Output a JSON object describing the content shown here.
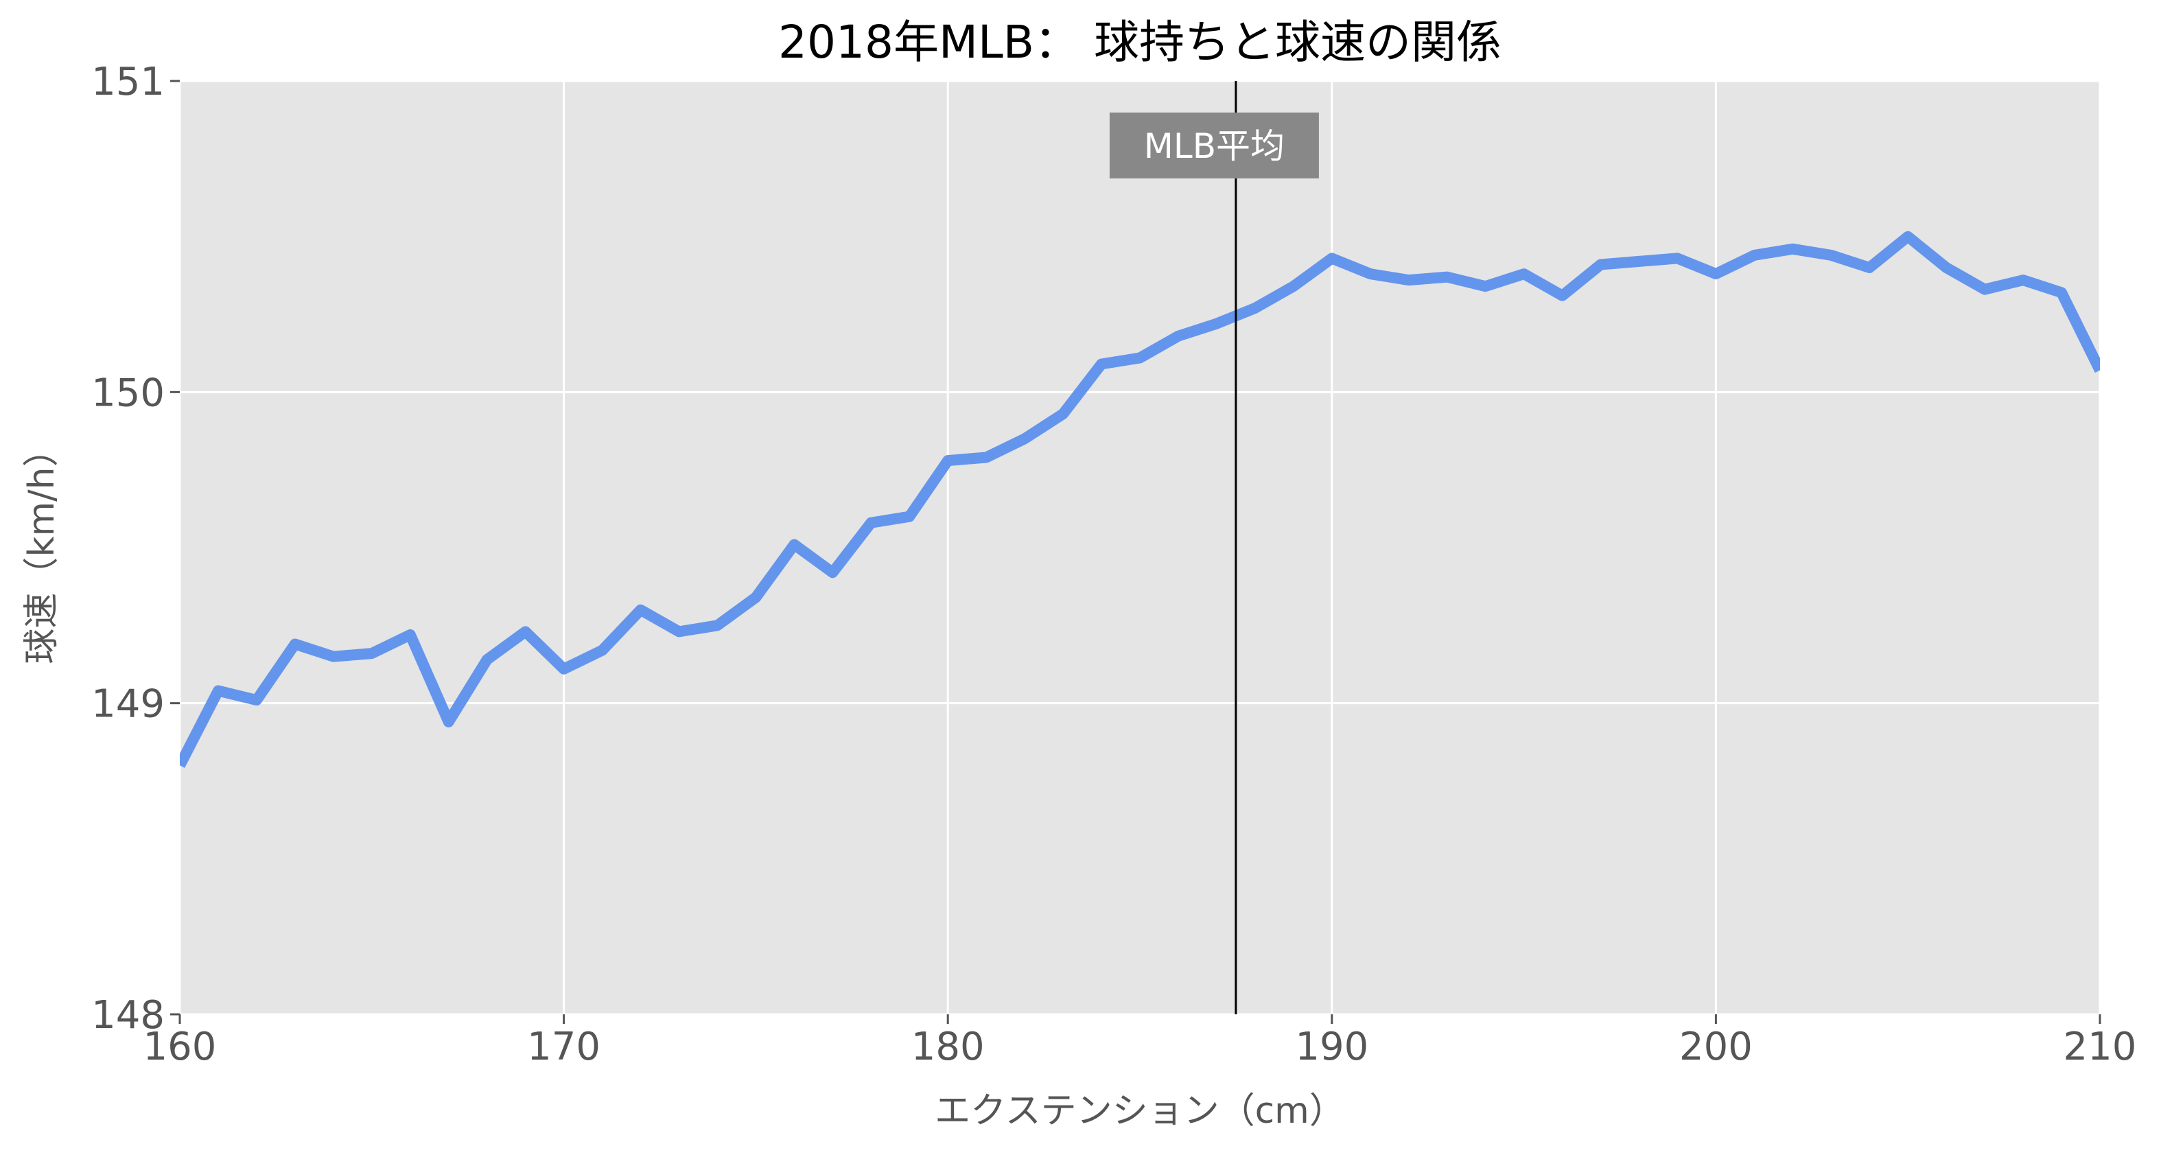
{
  "chart_data": {
    "type": "line",
    "title": "2018年MLB： 球持ちと球速の関係",
    "xlabel": "エクステンション（cm）",
    "ylabel": "球速（km/h）",
    "xlim": [
      160,
      210
    ],
    "ylim": [
      148,
      151
    ],
    "x_ticks": [
      160,
      170,
      180,
      190,
      200,
      210
    ],
    "y_ticks": [
      148,
      149,
      150,
      151
    ],
    "grid": true,
    "colors": {
      "background": "#e5e5e5",
      "grid": "#ffffff",
      "line": "#6495ed",
      "ref_line": "#000000",
      "annotation_box": "#888888"
    },
    "series": [
      {
        "x": [
          160,
          161,
          162,
          163,
          164,
          165,
          166,
          167,
          168,
          169,
          170,
          171,
          172,
          173,
          174,
          175,
          176,
          177,
          178,
          179,
          180,
          181,
          182,
          183,
          184,
          185,
          186,
          187,
          188,
          189,
          190,
          191,
          192,
          193,
          194,
          195,
          196,
          197,
          198,
          199,
          200,
          201,
          202,
          203,
          204,
          205,
          206,
          207,
          208,
          209,
          210
        ],
        "values": [
          148.8,
          149.04,
          149.01,
          149.19,
          149.15,
          149.16,
          149.22,
          148.94,
          149.14,
          149.23,
          149.11,
          149.17,
          149.3,
          149.23,
          149.25,
          149.34,
          149.51,
          149.42,
          149.58,
          149.6,
          149.78,
          149.79,
          149.85,
          149.93,
          150.09,
          150.11,
          150.18,
          150.22,
          150.27,
          150.34,
          150.43,
          150.38,
          150.36,
          150.37,
          150.34,
          150.38,
          150.31,
          150.41,
          150.42,
          150.43,
          150.38,
          150.44,
          150.46,
          150.44,
          150.4,
          150.5,
          150.4,
          150.33,
          150.36,
          150.32,
          150.07
        ]
      }
    ],
    "reference_line": {
      "x": 187.5,
      "label": "MLB平均"
    }
  }
}
